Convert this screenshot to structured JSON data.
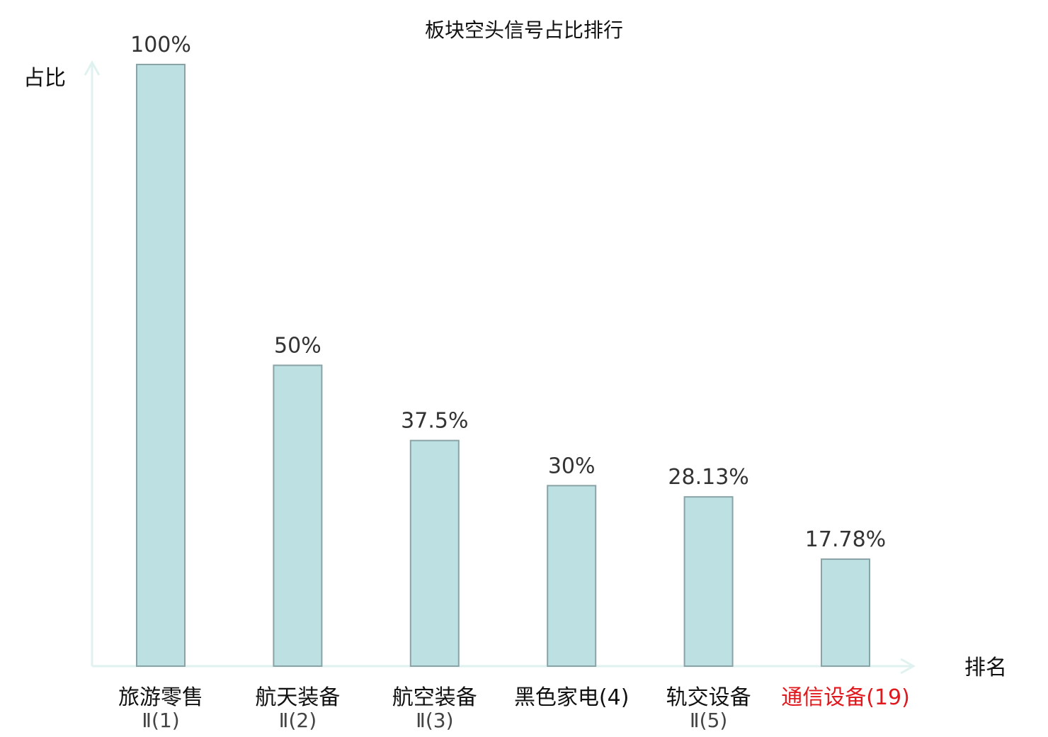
{
  "chart_data": {
    "type": "bar",
    "title": "板块空头信号占比排行",
    "ylabel": "占比",
    "xlabel": "排名",
    "categories": [
      {
        "name": "旅游零售",
        "sub": "Ⅱ(1)",
        "highlight": false
      },
      {
        "name": "航天装备",
        "sub": "Ⅱ(2)",
        "highlight": false
      },
      {
        "name": "航空装备",
        "sub": "Ⅱ(3)",
        "highlight": false
      },
      {
        "name": "黑色家电(4)",
        "sub": "",
        "highlight": false
      },
      {
        "name": "轨交设备",
        "sub": "Ⅱ(5)",
        "highlight": false
      },
      {
        "name": "通信设备(19)",
        "sub": "",
        "highlight": true
      }
    ],
    "values": [
      100,
      50,
      37.5,
      30,
      28.13,
      17.78
    ],
    "value_labels": [
      "100%",
      "50%",
      "37.5%",
      "30%",
      "28.13%",
      "17.78%"
    ],
    "ylim": [
      0,
      100
    ],
    "grid": false,
    "legend": "none"
  },
  "colors": {
    "bar_fill": "#bde0e3",
    "bar_stroke": "#8aa3a6",
    "axis": "#e0f2ef",
    "highlight_text": "#e0191e",
    "normal_text": "#111111"
  }
}
